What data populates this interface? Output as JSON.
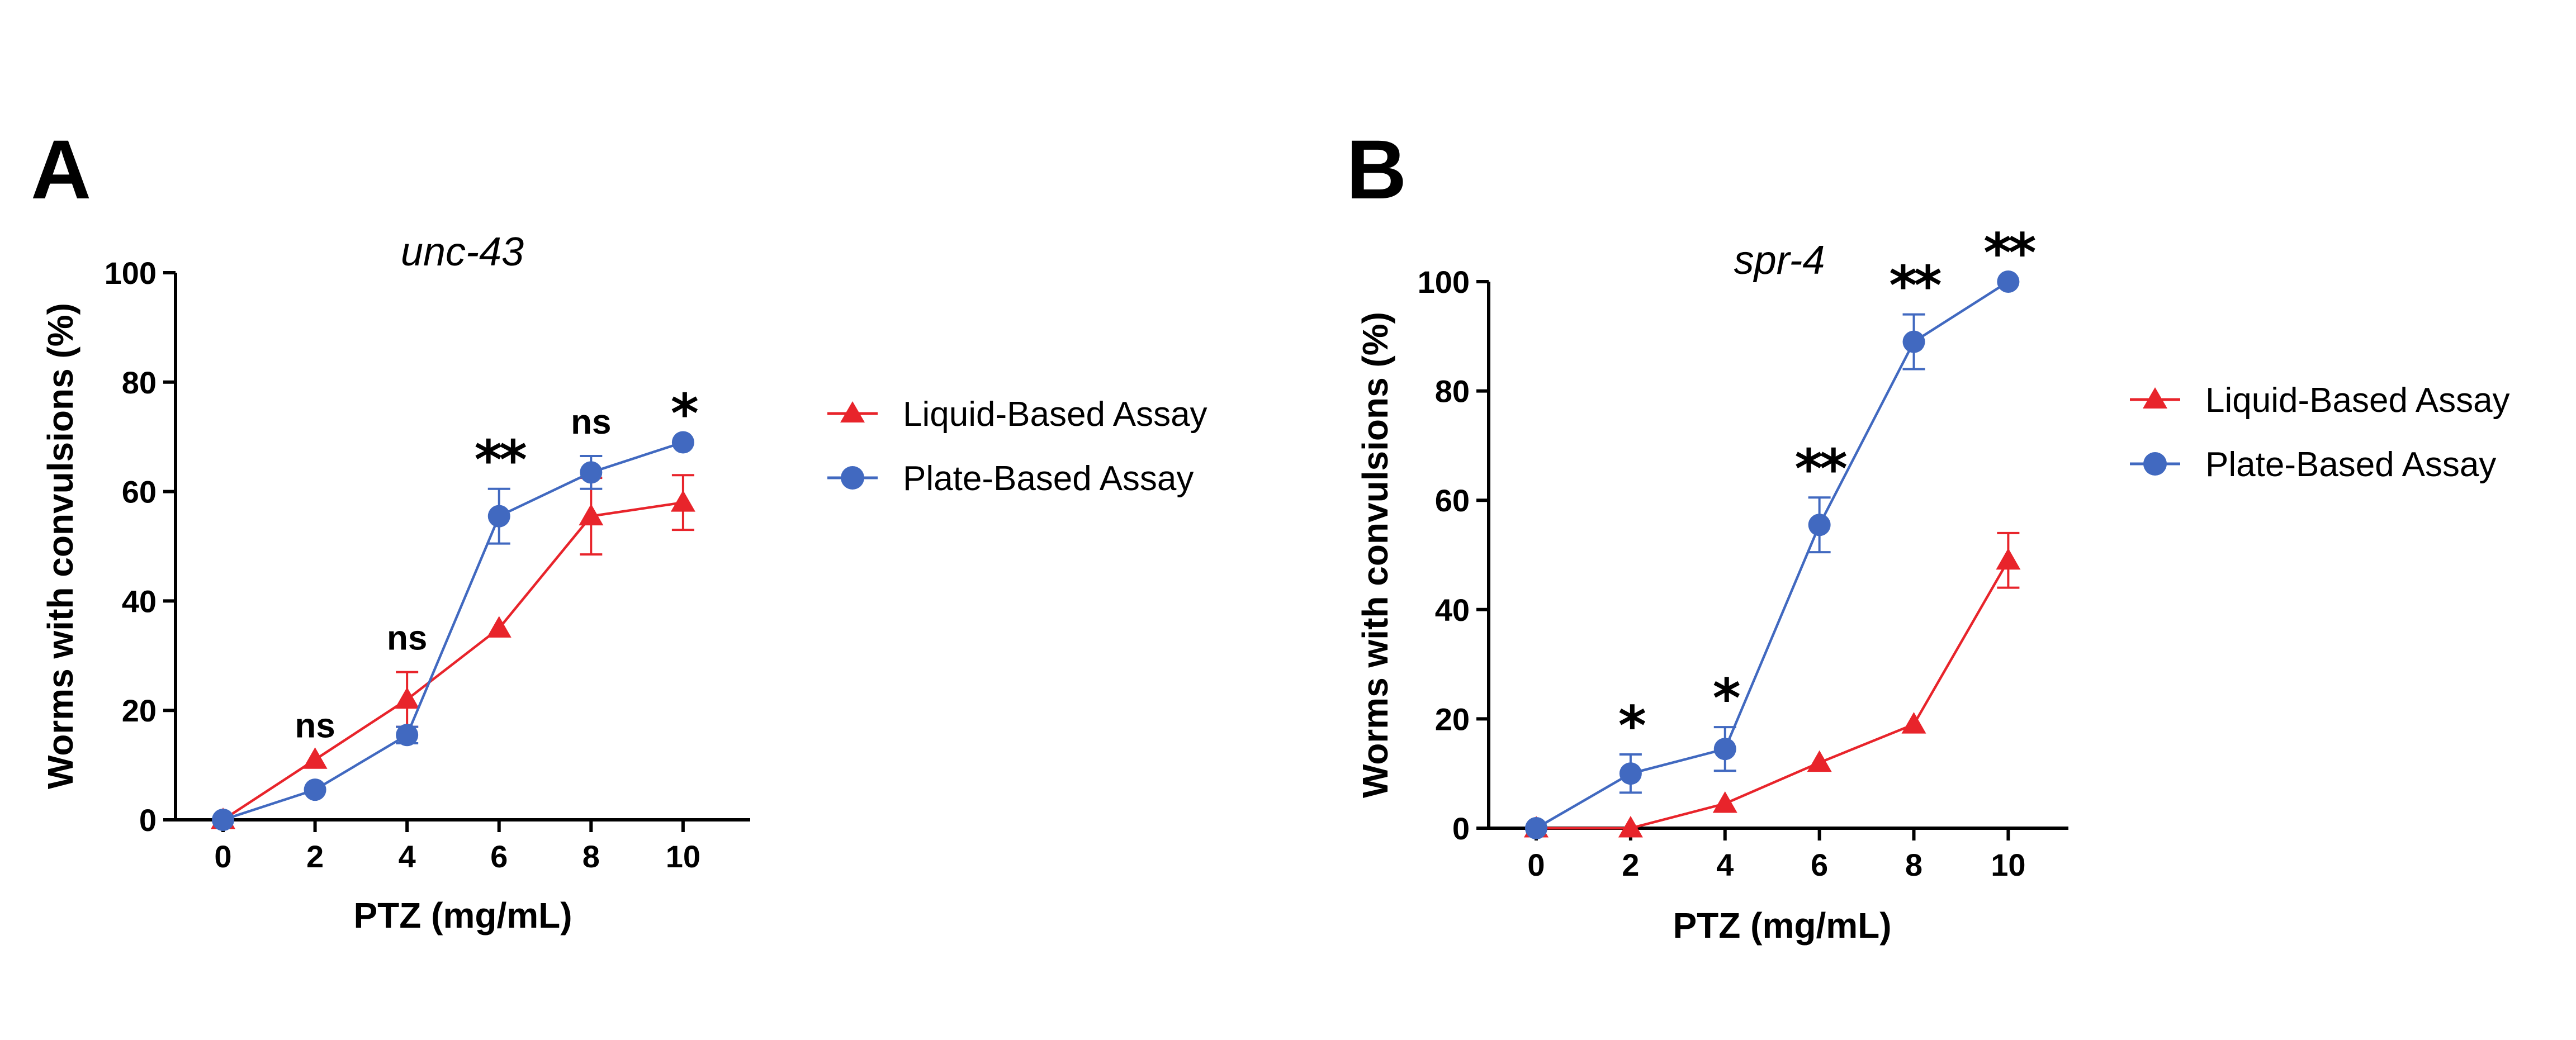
{
  "chart_data": [
    {
      "panel": "A",
      "type": "line",
      "title": "unc-43",
      "xlabel": "PTZ (mg/mL)",
      "ylabel": "Worms with convulsions (%)",
      "xlim": [
        -1,
        11
      ],
      "ylim": [
        0,
        100
      ],
      "xticks": [
        0,
        2,
        4,
        6,
        8,
        10
      ],
      "yticks": [
        0,
        20,
        40,
        60,
        80,
        100
      ],
      "legend_position": "right",
      "series": [
        {
          "name": "Liquid-Based Assay",
          "color": "#e8242b",
          "marker": "triangle",
          "x": [
            0,
            2,
            4,
            6,
            8,
            10
          ],
          "y": [
            0,
            11,
            22,
            35,
            55.5,
            58
          ],
          "err": [
            0,
            0,
            5,
            0,
            7,
            5
          ]
        },
        {
          "name": "Plate-Based Assay",
          "color": "#4169c0",
          "marker": "circle",
          "x": [
            0,
            2,
            4,
            6,
            8,
            10
          ],
          "y": [
            0,
            5.5,
            15.5,
            55.5,
            63.5,
            69
          ],
          "err": [
            0,
            0,
            1.5,
            5,
            3,
            0
          ]
        }
      ],
      "annotations": [
        {
          "x": 2,
          "y": 11,
          "text": "ns"
        },
        {
          "x": 4,
          "y": 27,
          "text": "ns"
        },
        {
          "x": 6,
          "y": 60.5,
          "text": "**"
        },
        {
          "x": 8,
          "y": 66.5,
          "text": "ns"
        },
        {
          "x": 10,
          "y": 69,
          "text": "*"
        }
      ]
    },
    {
      "panel": "B",
      "type": "line",
      "title": "spr-4",
      "xlabel": "PTZ (mg/mL)",
      "ylabel": "Worms with convulsions (%)",
      "xlim": [
        -1,
        11
      ],
      "ylim": [
        0,
        100
      ],
      "xticks": [
        0,
        2,
        4,
        6,
        8,
        10
      ],
      "yticks": [
        0,
        20,
        40,
        60,
        80,
        100
      ],
      "legend_position": "right",
      "series": [
        {
          "name": "Liquid-Based Assay",
          "color": "#e8242b",
          "marker": "triangle",
          "x": [
            0,
            2,
            4,
            6,
            8,
            10
          ],
          "y": [
            0,
            0,
            4.5,
            12,
            19,
            49
          ],
          "err": [
            0,
            0,
            0,
            0,
            0,
            5
          ]
        },
        {
          "name": "Plate-Based Assay",
          "color": "#4169c0",
          "marker": "circle",
          "x": [
            0,
            2,
            4,
            6,
            8,
            10
          ],
          "y": [
            0,
            10,
            14.5,
            55.5,
            89,
            100
          ],
          "err": [
            0,
            3.5,
            4,
            5,
            5,
            0
          ]
        }
      ],
      "annotations": [
        {
          "x": 2,
          "y": 13.5,
          "text": "*"
        },
        {
          "x": 4,
          "y": 18.5,
          "text": "*"
        },
        {
          "x": 6,
          "y": 60.5,
          "text": "**"
        },
        {
          "x": 8,
          "y": 94,
          "text": "**"
        },
        {
          "x": 10,
          "y": 100,
          "text": "**"
        }
      ]
    }
  ]
}
